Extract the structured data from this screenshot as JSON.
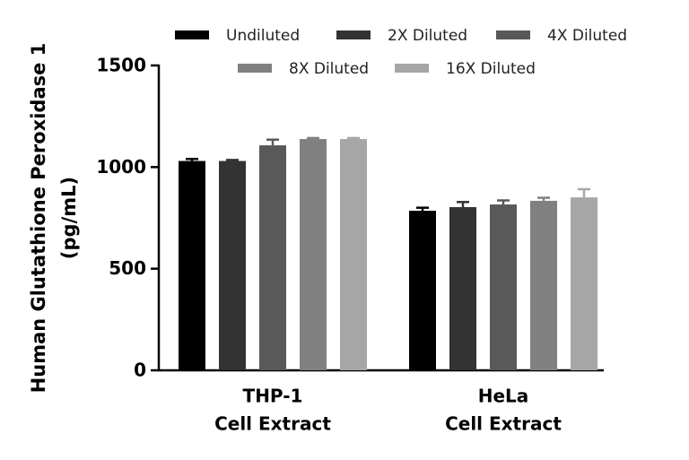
{
  "chart_data": {
    "type": "bar",
    "y_label": [
      "Human Glutathione Peroxidase 1",
      "(pg/mL)"
    ],
    "categories": [
      [
        "THP-1",
        "Cell Extract"
      ],
      [
        "HeLa",
        "Cell Extract"
      ]
    ],
    "series": [
      {
        "name": "Undiluted",
        "color": "#000000",
        "values": [
          1030,
          785
        ],
        "errors": [
          10,
          15
        ]
      },
      {
        "name": "2X Diluted",
        "color": "#333333",
        "values": [
          1030,
          803
        ],
        "errors": [
          5,
          25
        ]
      },
      {
        "name": "4X Diluted",
        "color": "#595959",
        "values": [
          1107,
          816
        ],
        "errors": [
          28,
          20
        ]
      },
      {
        "name": "8X Diluted",
        "color": "#808080",
        "values": [
          1138,
          834
        ],
        "errors": [
          5,
          15
        ]
      },
      {
        "name": "16X Diluted",
        "color": "#a6a6a6",
        "values": [
          1138,
          851
        ],
        "errors": [
          5,
          40
        ]
      }
    ],
    "ylim": [
      0,
      1500
    ],
    "yticks": [
      0,
      500,
      1000,
      1500
    ],
    "legend": "top"
  }
}
